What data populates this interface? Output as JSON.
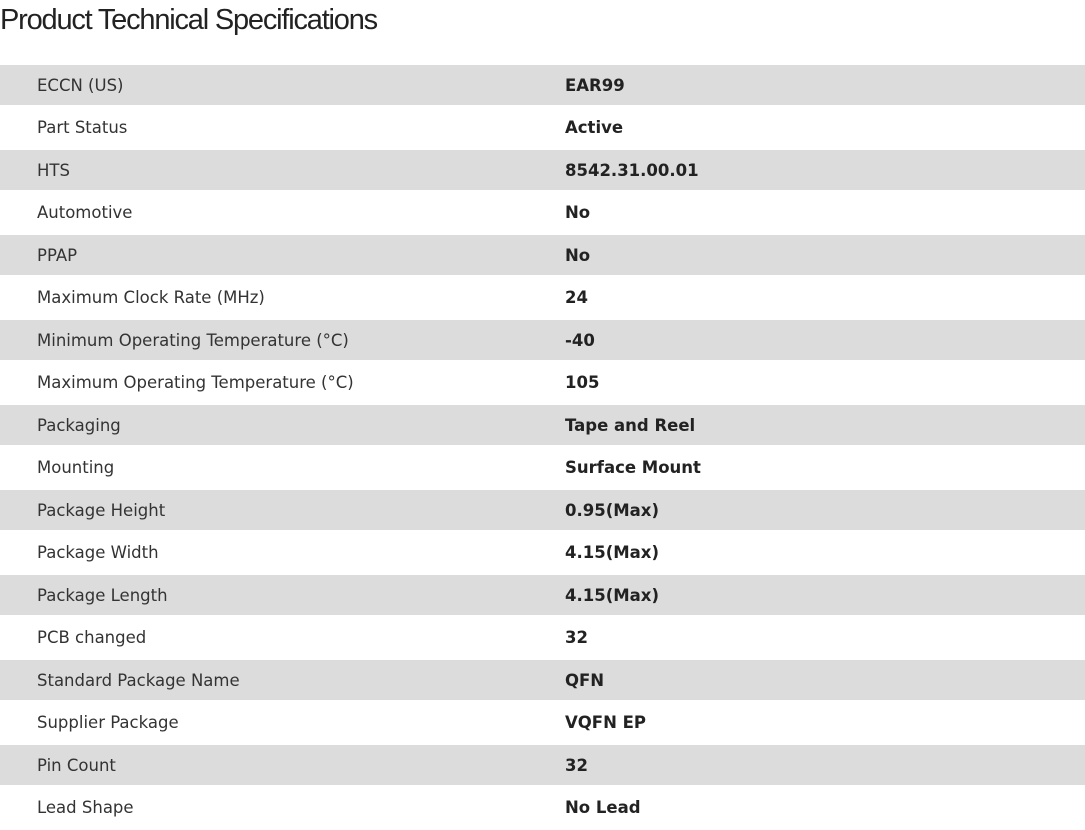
{
  "title": "Product Technical Specifications",
  "rows": [
    {
      "label": "ECCN (US)",
      "value": "EAR99"
    },
    {
      "label": "Part Status",
      "value": "Active"
    },
    {
      "label": "HTS",
      "value": "8542.31.00.01"
    },
    {
      "label": "Automotive",
      "value": "No"
    },
    {
      "label": "PPAP",
      "value": "No"
    },
    {
      "label": "Maximum Clock Rate (MHz)",
      "value": "24"
    },
    {
      "label": "Minimum Operating Temperature (°C)",
      "value": "-40"
    },
    {
      "label": "Maximum Operating Temperature (°C)",
      "value": "105"
    },
    {
      "label": "Packaging",
      "value": "Tape and Reel"
    },
    {
      "label": "Mounting",
      "value": "Surface Mount"
    },
    {
      "label": "Package Height",
      "value": "0.95(Max)"
    },
    {
      "label": "Package Width",
      "value": "4.15(Max)"
    },
    {
      "label": "Package Length",
      "value": "4.15(Max)"
    },
    {
      "label": "PCB changed",
      "value": "32"
    },
    {
      "label": "Standard Package Name",
      "value": "QFN"
    },
    {
      "label": "Supplier Package",
      "value": "VQFN EP"
    },
    {
      "label": "Pin Count",
      "value": "32"
    },
    {
      "label": "Lead Shape",
      "value": "No Lead"
    }
  ]
}
